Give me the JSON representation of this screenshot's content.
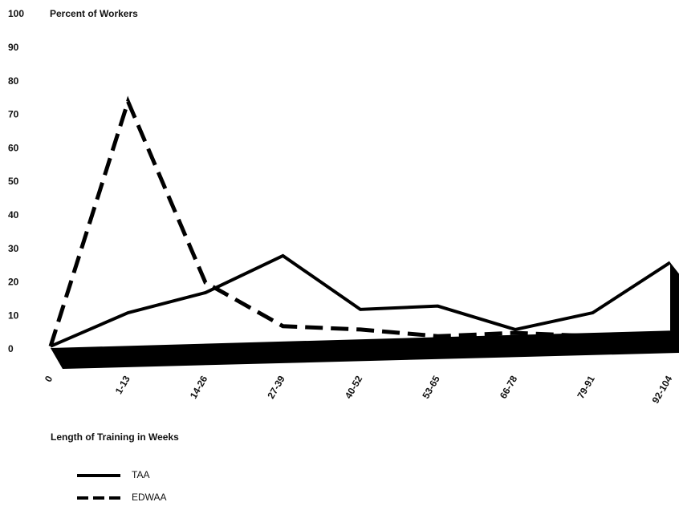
{
  "chart_data": {
    "type": "line",
    "y_axis_label": "Percent of Workers",
    "x_axis_label": "Length of Training in Weeks",
    "categories": [
      "0",
      "1-13",
      "14-26",
      "27-39",
      "40-52",
      "53-65",
      "66-78",
      "79-91",
      "92-104"
    ],
    "series": [
      {
        "name": "TAA",
        "color": "#000000",
        "dash": false,
        "values": [
          1,
          11,
          17,
          28,
          12,
          13,
          6,
          11,
          26
        ]
      },
      {
        "name": "EDWAA",
        "color": "#000000",
        "dash": true,
        "values": [
          1,
          74,
          20,
          7,
          6,
          4,
          5,
          4,
          5
        ]
      }
    ],
    "ylim": [
      0,
      100
    ],
    "yticks": [
      0,
      10,
      20,
      30,
      40,
      50,
      60,
      70,
      80,
      90,
      100
    ],
    "grid": false
  }
}
